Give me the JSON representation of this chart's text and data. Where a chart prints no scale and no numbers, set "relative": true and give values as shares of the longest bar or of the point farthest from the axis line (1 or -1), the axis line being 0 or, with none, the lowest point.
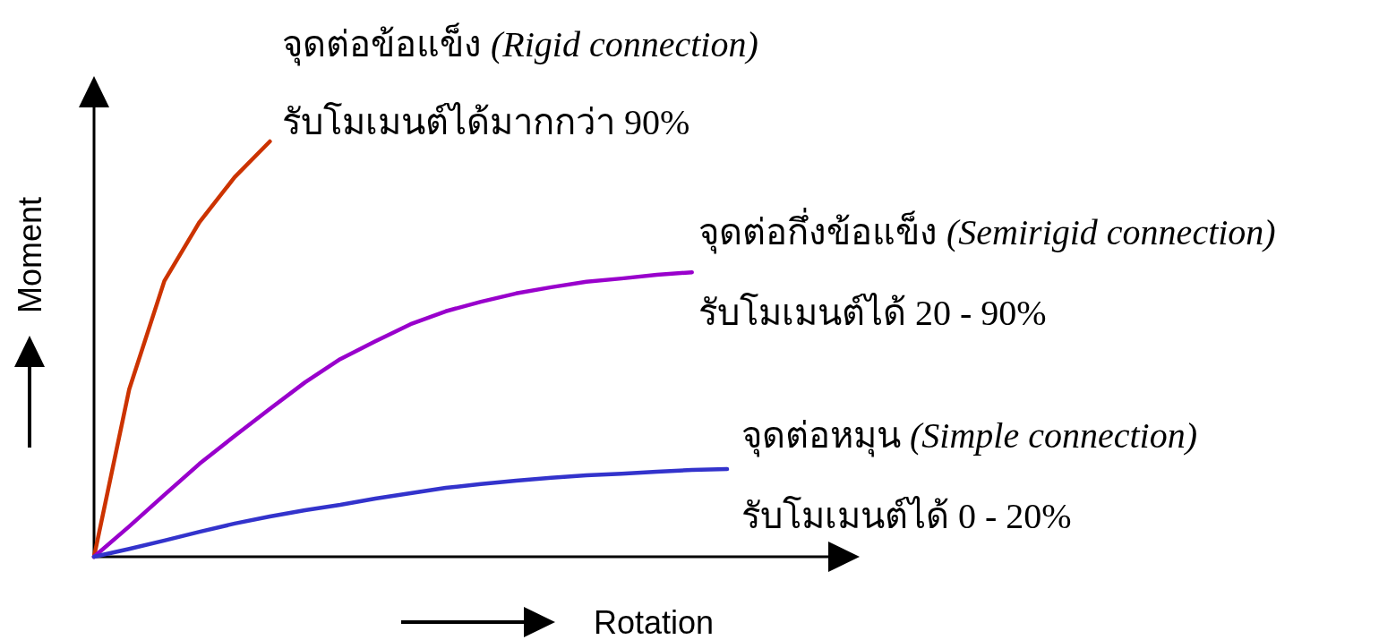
{
  "chart_data": {
    "type": "line",
    "relative": true,
    "xlabel": "Rotation",
    "ylabel": "Moment",
    "categories": [
      null,
      null,
      null,
      null,
      null,
      null,
      null,
      null,
      null,
      null,
      null,
      null,
      null,
      null,
      null,
      null,
      null,
      null,
      null
    ],
    "series": [
      {
        "name": "จุดต่อข้อแข็ง *(Rigid connection)*",
        "color": "#cc3300",
        "values": [
          0,
          0.403,
          0.664,
          0.806,
          0.914,
          1,
          null,
          null,
          null,
          null,
          null,
          null,
          null,
          null,
          null,
          null,
          null,
          null,
          null
        ]
      },
      {
        "name": "จุดต่อกึ่งข้อแข็ง *(Semirigid connection)*",
        "color": "#9900cc",
        "values": [
          0,
          0.073,
          0.149,
          0.224,
          0.291,
          0.356,
          0.42,
          0.476,
          0.519,
          0.56,
          0.591,
          0.614,
          0.634,
          0.649,
          0.662,
          0.67,
          0.679,
          0.685,
          null
        ]
      },
      {
        "name": "จุดต่อหมุน *(Simple connection)*",
        "color": "#3333cc",
        "values": [
          0,
          0.019,
          0.039,
          0.06,
          0.08,
          0.097,
          0.112,
          0.125,
          0.14,
          0.153,
          0.166,
          0.175,
          0.183,
          0.19,
          0.196,
          0.2,
          0.205,
          0.209,
          0.211
        ]
      }
    ],
    "annotations": [
      "รับโมเมนต์ได้มากกว่า 90%",
      "รับโมเมนต์ได้ 20 - 90%",
      "รับโมเมนต์ได้ 0 - 20%"
    ]
  }
}
